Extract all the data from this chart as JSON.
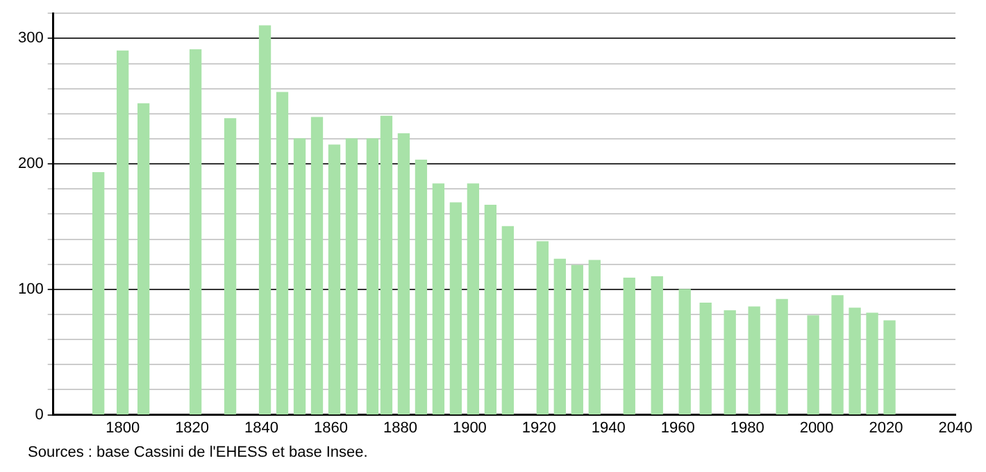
{
  "chart_data": {
    "type": "bar",
    "color": "#a8e2a8",
    "x": [
      1793,
      1800,
      1806,
      1821,
      1831,
      1841,
      1846,
      1851,
      1856,
      1861,
      1866,
      1872,
      1876,
      1881,
      1886,
      1891,
      1896,
      1901,
      1906,
      1911,
      1921,
      1926,
      1931,
      1936,
      1946,
      1954,
      1962,
      1968,
      1975,
      1982,
      1990,
      1999,
      2006,
      2011,
      2016,
      2021
    ],
    "values": [
      193,
      290,
      248,
      291,
      236,
      310,
      257,
      220,
      237,
      215,
      220,
      220,
      238,
      224,
      203,
      184,
      169,
      184,
      167,
      150,
      138,
      124,
      119,
      123,
      109,
      110,
      100,
      89,
      83,
      86,
      92,
      79,
      95,
      85,
      81,
      75
    ],
    "xlim": [
      1780,
      2040
    ],
    "xticks": [
      1800,
      1820,
      1840,
      1860,
      1880,
      1900,
      1920,
      1940,
      1960,
      1980,
      2000,
      2020,
      2040
    ],
    "ylim": [
      0,
      320
    ],
    "yticks": [
      0,
      {
        "value": 20,
        "label": null
      },
      {
        "value": 40,
        "label": null
      },
      {
        "value": 60,
        "label": null
      },
      {
        "value": 80,
        "label": null
      },
      100,
      {
        "value": 120,
        "label": null
      },
      {
        "value": 140,
        "label": null
      },
      {
        "value": 160,
        "label": null
      },
      {
        "value": 180,
        "label": null
      },
      200,
      {
        "value": 220,
        "label": null
      },
      {
        "value": 240,
        "label": null
      },
      {
        "value": 260,
        "label": null
      },
      {
        "value": 280,
        "label": null
      },
      300,
      {
        "value": 320,
        "label": null
      }
    ],
    "grid": "y",
    "annotations": [
      "Sources : base Cassini de l'EHESS et base Insee."
    ]
  }
}
